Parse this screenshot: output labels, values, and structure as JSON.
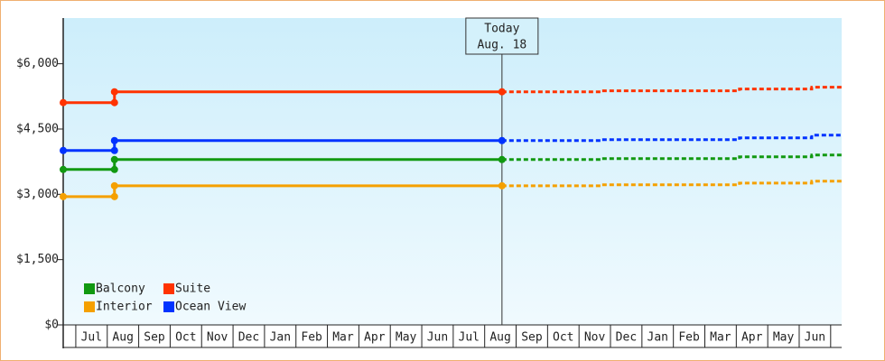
{
  "chart_data": {
    "type": "line",
    "categories": [
      "Jul",
      "Aug",
      "Sep",
      "Oct",
      "Nov",
      "Dec",
      "Jan",
      "Feb",
      "Mar",
      "Apr",
      "May",
      "Jun",
      "Jul",
      "Aug",
      "Sep",
      "Oct",
      "Nov",
      "Dec",
      "Jan",
      "Feb",
      "Mar",
      "Apr",
      "May",
      "Jun"
    ],
    "xlim": [
      -0.4,
      24.35
    ],
    "ylim": [
      0,
      7050
    ],
    "yticks": [
      {
        "value": 0,
        "label": "$0"
      },
      {
        "value": 1500,
        "label": "$1,500"
      },
      {
        "value": 3000,
        "label": "$3,000"
      },
      {
        "value": 4500,
        "label": "$4,500"
      },
      {
        "value": 6000,
        "label": "$6,000"
      }
    ],
    "today": {
      "x": 13.55,
      "label": "Today",
      "date": "Aug. 18"
    },
    "series": [
      {
        "name": "Balcony",
        "color": "#119911",
        "x": [
          -0.4,
          1.23,
          1.23,
          13.55
        ],
        "values": [
          3571,
          3571,
          3799,
          3799
        ],
        "projection_x": [
          13.55,
          16.7,
          16.7,
          21.1,
          21.1,
          23.4,
          23.4,
          24.35
        ],
        "projection_values": [
          3799,
          3799,
          3820,
          3820,
          3861,
          3861,
          3903,
          3903
        ]
      },
      {
        "name": "Suite",
        "color": "#ff3300",
        "x": [
          -0.4,
          1.23,
          1.23,
          13.55
        ],
        "values": [
          5107,
          5107,
          5356,
          5356
        ],
        "projection_x": [
          13.55,
          16.7,
          16.7,
          21.1,
          21.1,
          23.4,
          23.4,
          24.35
        ],
        "projection_values": [
          5356,
          5356,
          5377,
          5377,
          5419,
          5419,
          5460,
          5460
        ]
      },
      {
        "name": "Interior",
        "color": "#f5a000",
        "x": [
          -0.4,
          1.23,
          1.23,
          13.55
        ],
        "values": [
          2948,
          2948,
          3197,
          3197
        ],
        "projection_x": [
          13.55,
          16.7,
          16.7,
          21.1,
          21.1,
          23.4,
          23.4,
          24.35
        ],
        "projection_values": [
          3197,
          3197,
          3218,
          3218,
          3259,
          3259,
          3301,
          3301
        ]
      },
      {
        "name": "Ocean View",
        "color": "#0033ff",
        "x": [
          -0.4,
          1.23,
          1.23,
          13.55
        ],
        "values": [
          4007,
          4007,
          4235,
          4235
        ],
        "projection_x": [
          13.55,
          16.7,
          16.7,
          21.1,
          21.1,
          23.4,
          23.4,
          24.35
        ],
        "projection_values": [
          4235,
          4235,
          4256,
          4256,
          4298,
          4298,
          4360,
          4360
        ]
      }
    ]
  }
}
